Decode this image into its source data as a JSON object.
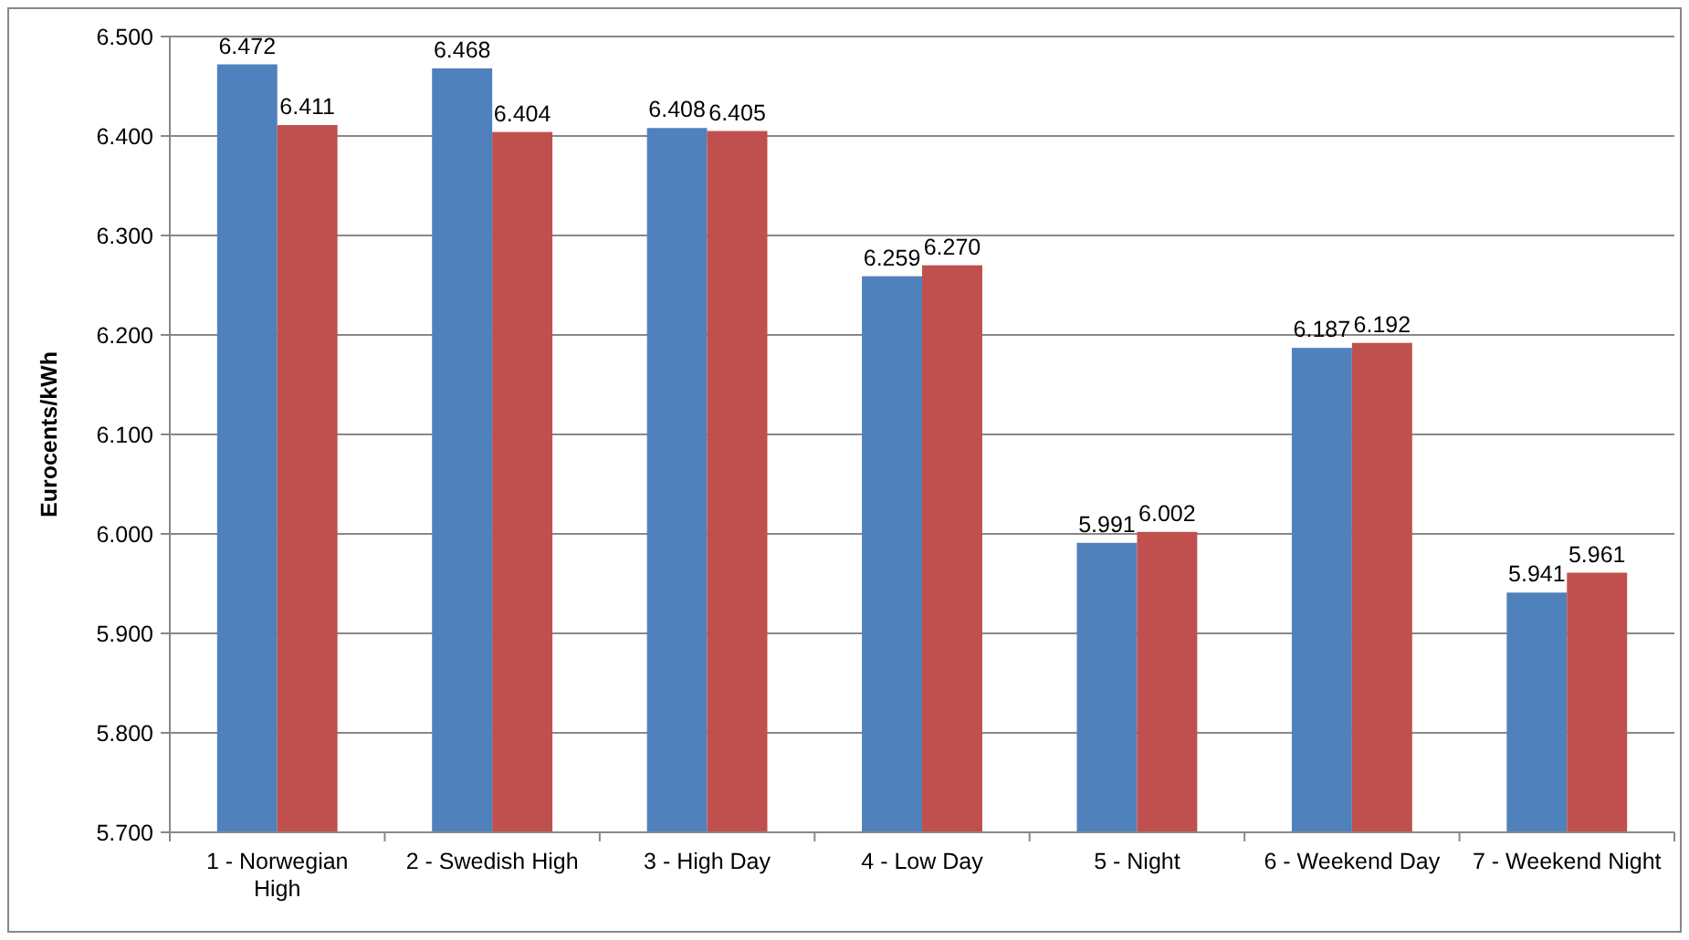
{
  "chart_data": {
    "type": "bar",
    "ylabel": "Eurocents/kWh",
    "categories": [
      "1 - Norwegian High",
      "2 - Swedish High",
      "3 - High Day",
      "4 - Low Day",
      "5 - Night",
      "6 - Weekend Day",
      "7 - Weekend Night"
    ],
    "series": [
      {
        "color": "#4f81bd",
        "values": [
          6.472,
          6.468,
          6.408,
          6.259,
          5.991,
          6.187,
          5.941
        ],
        "value_labels": [
          "6.472",
          "6.468",
          "6.408",
          "6.259",
          "5.991",
          "6.187",
          "5.941"
        ]
      },
      {
        "color": "#c0504d",
        "values": [
          6.411,
          6.404,
          6.405,
          6.27,
          6.002,
          6.192,
          5.961
        ],
        "value_labels": [
          "6.411",
          "6.404",
          "6.405",
          "6.270",
          "6.002",
          "6.192",
          "5.961"
        ]
      }
    ],
    "ylim": [
      5.7,
      6.5
    ],
    "yticks": [
      {
        "value": 5.7,
        "label": "5.700"
      },
      {
        "value": 5.8,
        "label": "5.800"
      },
      {
        "value": 5.9,
        "label": "5.900"
      },
      {
        "value": 6.0,
        "label": "6.000"
      },
      {
        "value": 6.1,
        "label": "6.100"
      },
      {
        "value": 6.2,
        "label": "6.200"
      },
      {
        "value": 6.3,
        "label": "6.300"
      },
      {
        "value": 6.4,
        "label": "6.400"
      },
      {
        "value": 6.5,
        "label": "6.500"
      }
    ],
    "grid": "y"
  }
}
